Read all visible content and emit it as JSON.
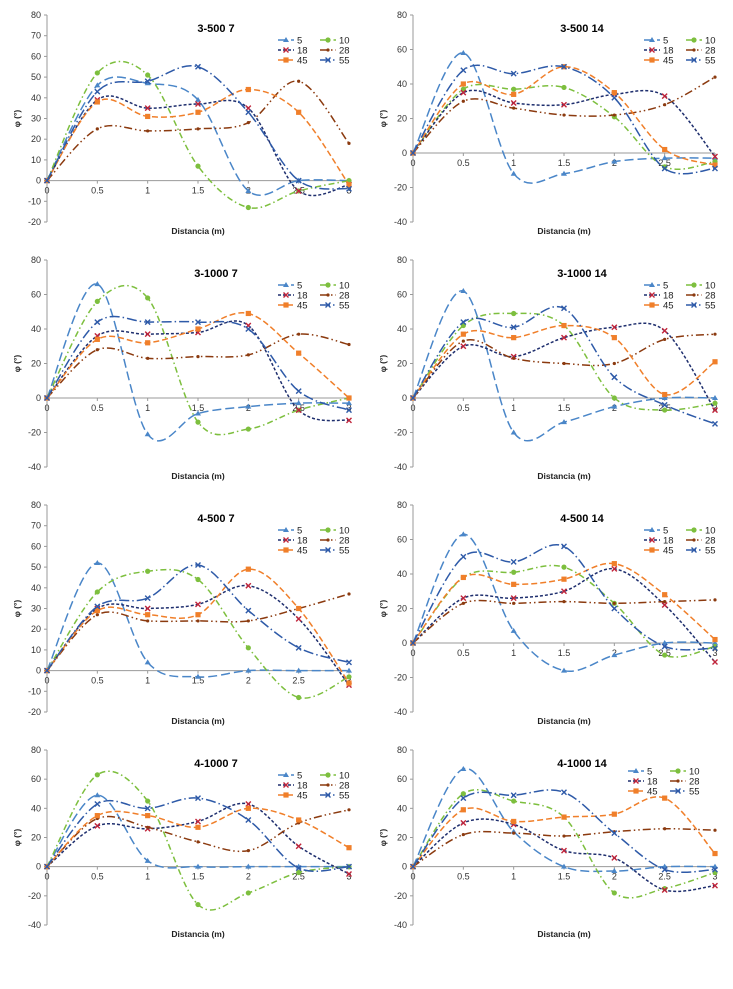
{
  "figure": {
    "xlabel": "Distancia (m)",
    "ylabel": "φ (°)",
    "x_ticks": [
      0,
      0.5,
      1,
      1.5,
      2,
      2.5,
      3
    ],
    "x_tick_labels": [
      "0",
      "0.5",
      "1",
      "1.5",
      "2",
      "2.5",
      "3"
    ],
    "legend": [
      {
        "name": "5",
        "color": "#4a86c8",
        "dash": "long-dash",
        "marker": "triangle"
      },
      {
        "name": "10",
        "color": "#7dbf3e",
        "dash": "dash-dot",
        "marker": "circle"
      },
      {
        "name": "18",
        "color": "#1f2f6e",
        "dash": "short-dash",
        "marker": "x-red"
      },
      {
        "name": "28",
        "color": "#8b3a0f",
        "dash": "dash-dot-dot",
        "marker": "dot"
      },
      {
        "name": "45",
        "color": "#f07f2a",
        "dash": "dash",
        "marker": "square"
      },
      {
        "name": "55",
        "color": "#2e5aa8",
        "dash": "long-dash-dot",
        "marker": "x"
      }
    ]
  },
  "chart_data": [
    {
      "type": "line",
      "title": "3-500 7",
      "xlabel": "Distancia (m)",
      "ylabel": "φ (°)",
      "ylim": [
        -20,
        80
      ],
      "y_ticks": [
        -20,
        -10,
        0,
        10,
        20,
        30,
        40,
        50,
        60,
        70,
        80
      ],
      "xlim": [
        0,
        3
      ],
      "legend_position": "top-right",
      "x": [
        0,
        0.5,
        1,
        1.5,
        2,
        2.5,
        3
      ],
      "series": [
        {
          "name": "5",
          "values": [
            0,
            46,
            47,
            39,
            -5,
            0,
            0
          ]
        },
        {
          "name": "10",
          "values": [
            0,
            52,
            51,
            7,
            -13,
            -5,
            0
          ]
        },
        {
          "name": "18",
          "values": [
            0,
            39,
            35,
            37,
            35,
            -5,
            -2
          ]
        },
        {
          "name": "28",
          "values": [
            0,
            25,
            24,
            25,
            28,
            48,
            18
          ]
        },
        {
          "name": "45",
          "values": [
            0,
            38,
            31,
            33,
            44,
            33,
            -2
          ]
        },
        {
          "name": "55",
          "values": [
            0,
            43,
            48,
            55,
            33,
            0,
            -4
          ]
        }
      ]
    },
    {
      "type": "line",
      "title": "3-500 14",
      "xlabel": "Distancia (m)",
      "ylabel": "φ (°)",
      "ylim": [
        -40,
        80
      ],
      "y_ticks": [
        -40,
        -20,
        0,
        20,
        40,
        60,
        80
      ],
      "xlim": [
        0,
        3
      ],
      "legend_position": "top-right",
      "x": [
        0,
        0.5,
        1,
        1.5,
        2,
        2.5,
        3
      ],
      "series": [
        {
          "name": "5",
          "values": [
            0,
            58,
            -12,
            -12,
            -5,
            -3,
            -3
          ]
        },
        {
          "name": "10",
          "values": [
            0,
            37,
            37,
            38,
            21,
            -8,
            -5
          ]
        },
        {
          "name": "18",
          "values": [
            0,
            35,
            29,
            28,
            34,
            33,
            -2
          ]
        },
        {
          "name": "28",
          "values": [
            0,
            30,
            26,
            22,
            22,
            28,
            44
          ]
        },
        {
          "name": "45",
          "values": [
            0,
            40,
            34,
            50,
            35,
            2,
            -7
          ]
        },
        {
          "name": "55",
          "values": [
            0,
            48,
            46,
            50,
            32,
            -9,
            -9
          ]
        }
      ]
    },
    {
      "type": "line",
      "title": "3-1000 7",
      "xlabel": "Distancia (m)",
      "ylabel": "φ (°)",
      "ylim": [
        -40,
        80
      ],
      "y_ticks": [
        -40,
        -20,
        0,
        20,
        40,
        60,
        80
      ],
      "xlim": [
        0,
        3
      ],
      "legend_position": "top-right",
      "x": [
        0,
        0.5,
        1,
        1.5,
        2,
        2.5,
        3
      ],
      "series": [
        {
          "name": "5",
          "values": [
            0,
            66,
            -21,
            -9,
            -5,
            -3,
            -3
          ]
        },
        {
          "name": "10",
          "values": [
            0,
            56,
            58,
            -14,
            -18,
            -7,
            0
          ]
        },
        {
          "name": "18",
          "values": [
            0,
            36,
            37,
            38,
            42,
            -7,
            -13
          ]
        },
        {
          "name": "28",
          "values": [
            0,
            28,
            23,
            24,
            25,
            37,
            31
          ]
        },
        {
          "name": "45",
          "values": [
            0,
            34,
            32,
            40,
            49,
            26,
            0
          ]
        },
        {
          "name": "55",
          "values": [
            0,
            44,
            44,
            44,
            40,
            4,
            -7
          ]
        }
      ]
    },
    {
      "type": "line",
      "title": "3-1000 14",
      "xlabel": "Distancia (m)",
      "ylabel": "φ (°)",
      "ylim": [
        -40,
        80
      ],
      "y_ticks": [
        -40,
        -20,
        0,
        20,
        40,
        60,
        80
      ],
      "xlim": [
        0,
        3
      ],
      "legend_position": "top-right",
      "x": [
        0,
        0.5,
        1,
        1.5,
        2,
        2.5,
        3
      ],
      "series": [
        {
          "name": "5",
          "values": [
            0,
            62,
            -20,
            -14,
            -5,
            0,
            0
          ]
        },
        {
          "name": "10",
          "values": [
            0,
            42,
            49,
            42,
            0,
            -7,
            -3
          ]
        },
        {
          "name": "18",
          "values": [
            0,
            30,
            24,
            35,
            41,
            39,
            -7
          ]
        },
        {
          "name": "28",
          "values": [
            0,
            33,
            23,
            20,
            20,
            34,
            37
          ]
        },
        {
          "name": "45",
          "values": [
            0,
            37,
            35,
            42,
            35,
            2,
            21
          ]
        },
        {
          "name": "55",
          "values": [
            0,
            44,
            41,
            52,
            12,
            -4,
            -15
          ]
        }
      ]
    },
    {
      "type": "line",
      "title": "4-500 7",
      "xlabel": "Distancia (m)",
      "ylabel": "φ (°)",
      "ylim": [
        -20,
        80
      ],
      "y_ticks": [
        -20,
        -10,
        0,
        10,
        20,
        30,
        40,
        50,
        60,
        70,
        80
      ],
      "xlim": [
        0,
        3
      ],
      "legend_position": "top-right",
      "x": [
        0,
        0.5,
        1,
        1.5,
        2,
        2.5,
        3
      ],
      "series": [
        {
          "name": "5",
          "values": [
            0,
            52,
            4,
            -3,
            0,
            0,
            0
          ]
        },
        {
          "name": "10",
          "values": [
            0,
            38,
            48,
            44,
            11,
            -13,
            -3
          ]
        },
        {
          "name": "18",
          "values": [
            0,
            30,
            30,
            32,
            41,
            25,
            -7
          ]
        },
        {
          "name": "28",
          "values": [
            0,
            27,
            24,
            24,
            24,
            30,
            37
          ]
        },
        {
          "name": "45",
          "values": [
            0,
            29,
            27,
            27,
            49,
            30,
            -6
          ]
        },
        {
          "name": "55",
          "values": [
            0,
            31,
            35,
            51,
            29,
            11,
            4
          ]
        }
      ]
    },
    {
      "type": "line",
      "title": "4-500 14",
      "xlabel": "Distancia (m)",
      "ylabel": "φ (°)",
      "ylim": [
        -40,
        80
      ],
      "y_ticks": [
        -40,
        -20,
        0,
        20,
        40,
        60,
        80
      ],
      "xlim": [
        0,
        3
      ],
      "legend_position": "top-right",
      "x": [
        0,
        0.5,
        1,
        1.5,
        2,
        2.5,
        3
      ],
      "series": [
        {
          "name": "5",
          "values": [
            0,
            63,
            7,
            -16,
            -7,
            0,
            0
          ]
        },
        {
          "name": "10",
          "values": [
            0,
            38,
            41,
            44,
            23,
            -7,
            -2
          ]
        },
        {
          "name": "18",
          "values": [
            0,
            26,
            26,
            30,
            43,
            22,
            -11
          ]
        },
        {
          "name": "28",
          "values": [
            0,
            23,
            23,
            24,
            23,
            24,
            25
          ]
        },
        {
          "name": "45",
          "values": [
            0,
            38,
            34,
            37,
            46,
            28,
            2
          ]
        },
        {
          "name": "55",
          "values": [
            0,
            50,
            47,
            56,
            20,
            -2,
            -3
          ]
        }
      ]
    },
    {
      "type": "line",
      "title": "4-1000 7",
      "xlabel": "Distancia (m)",
      "ylabel": "φ (°)",
      "ylim": [
        -40,
        80
      ],
      "y_ticks": [
        -40,
        -20,
        0,
        20,
        40,
        60,
        80
      ],
      "xlim": [
        0,
        3
      ],
      "legend_position": "top-right",
      "x": [
        0,
        0.5,
        1,
        1.5,
        2,
        2.5,
        3
      ],
      "series": [
        {
          "name": "5",
          "values": [
            0,
            49,
            4,
            0,
            0,
            0,
            0
          ]
        },
        {
          "name": "10",
          "values": [
            0,
            63,
            45,
            -26,
            -18,
            -4,
            0
          ]
        },
        {
          "name": "18",
          "values": [
            0,
            28,
            26,
            31,
            43,
            14,
            -5
          ]
        },
        {
          "name": "28",
          "values": [
            0,
            33,
            27,
            17,
            11,
            30,
            39
          ]
        },
        {
          "name": "45",
          "values": [
            0,
            35,
            35,
            27,
            40,
            32,
            13
          ]
        },
        {
          "name": "55",
          "values": [
            0,
            43,
            40,
            47,
            32,
            -1,
            0
          ]
        }
      ]
    },
    {
      "type": "line",
      "title": "4-1000 14",
      "xlabel": "Distancia (m)",
      "ylabel": "φ (°)",
      "ylim": [
        -40,
        80
      ],
      "y_ticks": [
        -40,
        -20,
        0,
        20,
        40,
        60,
        80
      ],
      "xlim": [
        0,
        3
      ],
      "legend_position": "top-right",
      "x": [
        0,
        0.5,
        1,
        1.5,
        2,
        2.5,
        3
      ],
      "series": [
        {
          "name": "5",
          "values": [
            0,
            67,
            24,
            0,
            -3,
            0,
            0
          ]
        },
        {
          "name": "10",
          "values": [
            0,
            50,
            45,
            34,
            -18,
            -15,
            -4
          ]
        },
        {
          "name": "18",
          "values": [
            0,
            30,
            29,
            11,
            6,
            -16,
            -13
          ]
        },
        {
          "name": "28",
          "values": [
            0,
            22,
            23,
            21,
            24,
            26,
            25
          ]
        },
        {
          "name": "45",
          "values": [
            0,
            39,
            31,
            34,
            36,
            47,
            9
          ]
        },
        {
          "name": "55",
          "values": [
            0,
            47,
            49,
            51,
            23,
            -2,
            -2
          ]
        }
      ]
    }
  ]
}
